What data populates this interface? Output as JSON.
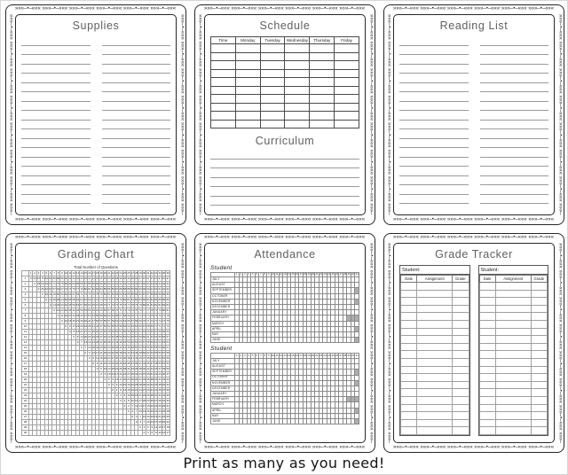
{
  "page": {
    "background": "#ffffff",
    "footer_text": "Print as many as you need!"
  },
  "decor": {
    "pattern": "»»»–•–«««  ",
    "ink_color": "#262626"
  },
  "supplies": {
    "title": "Supplies",
    "columns": 2,
    "lines_per_column": 18
  },
  "schedule": {
    "title": "Schedule",
    "headers": [
      "Time",
      "Monday",
      "Tuesday",
      "Wednesday",
      "Thursday",
      "Friday"
    ],
    "body_rows": 10,
    "curriculum_title": "Curriculum",
    "curriculum_lines": 7
  },
  "reading_list": {
    "title": "Reading List",
    "columns": 2,
    "lines_per_column": 18
  },
  "grading_chart": {
    "title": "Grading Chart",
    "axis_label": "Total Number of Questions",
    "columns": [
      1,
      2,
      3,
      4,
      5,
      6,
      7,
      8,
      9,
      10,
      11,
      12,
      13,
      14,
      15,
      16,
      17,
      18,
      19,
      20,
      21,
      22,
      23,
      24,
      25,
      26,
      27,
      28,
      29,
      30,
      31,
      32,
      33,
      34,
      35,
      36
    ],
    "rows": [
      1,
      2,
      3,
      4,
      5,
      6,
      7,
      8,
      9,
      10,
      11,
      12,
      13,
      14,
      15,
      16,
      17,
      18,
      19,
      20,
      21,
      22,
      23,
      24,
      25,
      26,
      27,
      28,
      29,
      30
    ]
  },
  "attendance": {
    "title": "Attendance",
    "days": [
      1,
      2,
      3,
      4,
      5,
      6,
      7,
      8,
      9,
      10,
      11,
      12,
      13,
      14,
      15,
      16,
      17,
      18,
      19,
      20,
      21,
      22,
      23,
      24,
      25,
      26,
      27,
      28,
      29,
      30,
      31
    ],
    "months": [
      {
        "name": "JULY",
        "days": 31
      },
      {
        "name": "AUGUST",
        "days": 31
      },
      {
        "name": "SEPTEMBER",
        "days": 30
      },
      {
        "name": "OCTOBER",
        "days": 31
      },
      {
        "name": "NOVEMBER",
        "days": 30
      },
      {
        "name": "DECEMBER",
        "days": 31
      },
      {
        "name": "JANUARY",
        "days": 31
      },
      {
        "name": "FEBRUARY",
        "days": 28
      },
      {
        "name": "MARCH",
        "days": 31
      },
      {
        "name": "APRIL",
        "days": 30
      },
      {
        "name": "MAY",
        "days": 31
      },
      {
        "name": "JUNE",
        "days": 30
      }
    ],
    "sections": [
      {
        "label": "Student"
      },
      {
        "label": "Student"
      }
    ]
  },
  "grade_tracker": {
    "title": "Grade Tracker",
    "headers": [
      "Date",
      "Assignment",
      "Grade"
    ],
    "body_rows": 20,
    "sections": [
      {
        "label": "Student:"
      },
      {
        "label": "Student:"
      }
    ]
  }
}
